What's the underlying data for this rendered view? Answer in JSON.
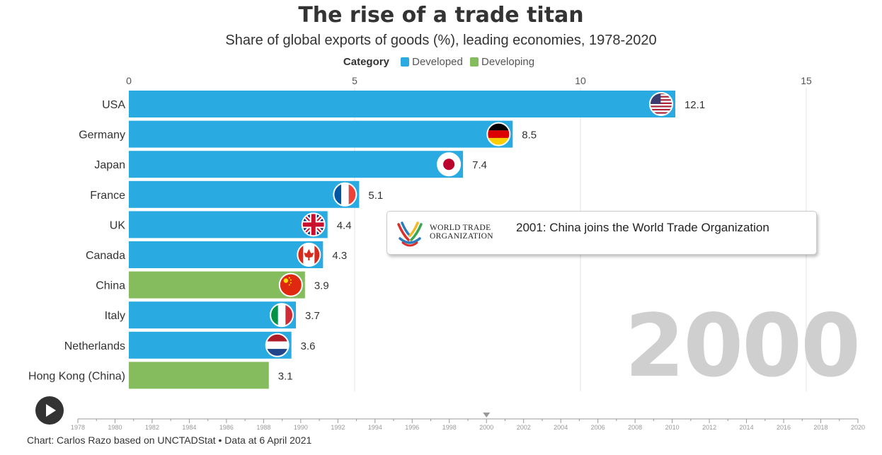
{
  "title": "The rise of a trade titan",
  "subtitle": "Share of global exports of goods (%), leading economies, 1978-2020",
  "legend": {
    "title": "Category",
    "items": [
      {
        "label": "Developed",
        "color": "#29abe2"
      },
      {
        "label": "Developing",
        "color": "#84bc5e"
      }
    ]
  },
  "annotation": {
    "logo_line1": "WORLD TRADE",
    "logo_line2": "ORGANIZATION",
    "text": "2001: China joins the World Trade Organization"
  },
  "current_year": "2000",
  "footer": "Chart: Carlos Razo based on UNCTADStat • Data at 6 April 2021",
  "timeline": {
    "years": [
      "1978",
      "1980",
      "1982",
      "1984",
      "1986",
      "1988",
      "1990",
      "1992",
      "1994",
      "1996",
      "1998",
      "2000",
      "2002",
      "2004",
      "2006",
      "2008",
      "2010",
      "2012",
      "2014",
      "2016",
      "2018",
      "2020"
    ],
    "current": 2000,
    "start": 1978,
    "end": 2020
  },
  "chart_data": {
    "type": "bar",
    "orientation": "horizontal",
    "xlim": [
      0,
      15
    ],
    "xticks": [
      "0",
      "5",
      "10",
      "15"
    ],
    "grid": true,
    "categories": [
      "USA",
      "Germany",
      "Japan",
      "France",
      "UK",
      "Canada",
      "China",
      "Italy",
      "Netherlands",
      "Hong Kong (China)"
    ],
    "values": [
      12.1,
      8.5,
      7.4,
      5.1,
      4.4,
      4.3,
      3.9,
      3.7,
      3.6,
      3.1
    ],
    "value_labels": [
      "12.1",
      "8.5",
      "7.4",
      "5.1",
      "4.4",
      "4.3",
      "3.9",
      "3.7",
      "3.6",
      "3.1"
    ],
    "category_group": [
      "Developed",
      "Developed",
      "Developed",
      "Developed",
      "Developed",
      "Developed",
      "Developing",
      "Developed",
      "Developed",
      "Developing"
    ],
    "flags": [
      "us-flag",
      "germany-flag",
      "japan-flag",
      "france-flag",
      "uk-flag",
      "canada-flag",
      "china-flag",
      "italy-flag",
      "netherlands-flag",
      "none"
    ]
  }
}
